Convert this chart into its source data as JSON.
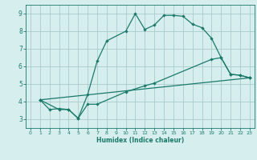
{
  "title": "",
  "xlabel": "Humidex (Indice chaleur)",
  "background_color": "#d6eeee",
  "grid_color": "#aacccc",
  "line_color": "#1a7a6a",
  "xlim": [
    -0.5,
    23.5
  ],
  "ylim": [
    2.5,
    9.5
  ],
  "xticks": [
    0,
    1,
    2,
    3,
    4,
    5,
    6,
    7,
    8,
    9,
    10,
    11,
    12,
    13,
    14,
    15,
    16,
    17,
    18,
    19,
    20,
    21,
    22,
    23
  ],
  "yticks": [
    3,
    4,
    5,
    6,
    7,
    8,
    9
  ],
  "line1_x": [
    1,
    2,
    3,
    4,
    5,
    6,
    7,
    8,
    10,
    11,
    12,
    13,
    14,
    15,
    16,
    17,
    18,
    19,
    20,
    21,
    22,
    23
  ],
  "line1_y": [
    4.1,
    3.55,
    3.6,
    3.55,
    3.05,
    4.4,
    6.3,
    7.45,
    8.0,
    9.0,
    8.1,
    8.35,
    8.9,
    8.9,
    8.85,
    8.4,
    8.2,
    7.6,
    6.5,
    5.55,
    5.5,
    5.35
  ],
  "line2_x": [
    1,
    3,
    4,
    5,
    6,
    7,
    10,
    12,
    13,
    19,
    20,
    21,
    22,
    23
  ],
  "line2_y": [
    4.1,
    3.55,
    3.55,
    3.05,
    3.85,
    3.85,
    4.55,
    4.9,
    5.05,
    6.4,
    6.5,
    5.55,
    5.5,
    5.35
  ],
  "line3_x": [
    1,
    23
  ],
  "line3_y": [
    4.1,
    5.35
  ],
  "figsize": [
    3.2,
    2.0
  ],
  "dpi": 100
}
